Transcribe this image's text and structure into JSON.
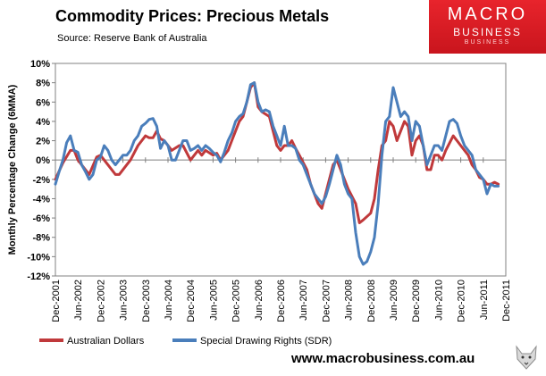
{
  "header": {
    "title": "Commodity Prices: Precious Metals",
    "source": "Source: Reserve Bank of Australia"
  },
  "logo": {
    "line1": "MACRO",
    "line2": "BUSINESS",
    "line3": "BUSINESS"
  },
  "footer": {
    "website": "www.macrobusiness.com.au"
  },
  "colors": {
    "aud": "#c0393b",
    "sdr": "#4a7ebb",
    "brand": "#d9262c"
  },
  "chart_data": {
    "type": "line",
    "title": "Commodity Prices: Precious Metals",
    "xlabel": "",
    "ylabel": "Monthly Percentage Change (6MMA)",
    "ylim": [
      -12,
      10
    ],
    "grid": false,
    "legend_position": "bottom",
    "yticks": [
      10,
      8,
      6,
      4,
      2,
      0,
      -2,
      -4,
      -6,
      -8,
      -10,
      -12
    ],
    "ytick_labels": [
      "10%",
      "8%",
      "6%",
      "4%",
      "2%",
      "0%",
      "-2%",
      "-4%",
      "-6%",
      "-8%",
      "-10%",
      "-12%"
    ],
    "xtick_months": [
      0,
      6,
      12,
      18,
      24,
      30,
      36,
      42,
      48,
      54,
      60,
      66,
      72,
      78,
      84,
      90,
      96,
      102,
      108,
      114,
      120
    ],
    "xtick_labels": [
      "Dec-2001",
      "Jun-2002",
      "Dec-2002",
      "Jun-2003",
      "Dec-2003",
      "Jun-2004",
      "Dec-2004",
      "Jun-2005",
      "Dec-2005",
      "Jun-2006",
      "Dec-2006",
      "Jun-2007",
      "Dec-2007",
      "Jun-2008",
      "Dec-2008",
      "Jun-2009",
      "Dec-2009",
      "Jun-2010",
      "Dec-2010",
      "Jun-2011",
      "Dec-2011"
    ],
    "series": [
      {
        "name": "Australian Dollars",
        "points": [
          [
            0,
            -2.0
          ],
          [
            2,
            -0.3
          ],
          [
            4,
            1.0
          ],
          [
            5,
            1.0
          ],
          [
            6,
            0.0
          ],
          [
            8,
            -1.0
          ],
          [
            9,
            -1.5
          ],
          [
            11,
            0.3
          ],
          [
            12,
            0.5
          ],
          [
            14,
            -0.5
          ],
          [
            16,
            -1.5
          ],
          [
            17,
            -1.5
          ],
          [
            19,
            -0.5
          ],
          [
            20,
            0.0
          ],
          [
            22,
            1.5
          ],
          [
            24,
            2.5
          ],
          [
            25,
            2.3
          ],
          [
            26,
            2.3
          ],
          [
            27,
            3.0
          ],
          [
            28,
            2.2
          ],
          [
            29,
            2.0
          ],
          [
            31,
            1.0
          ],
          [
            33,
            1.5
          ],
          [
            34,
            1.5
          ],
          [
            36,
            0.0
          ],
          [
            37,
            0.5
          ],
          [
            38,
            1.0
          ],
          [
            39,
            0.5
          ],
          [
            40,
            1.0
          ],
          [
            42,
            0.5
          ],
          [
            43,
            0.7
          ],
          [
            44,
            0.0
          ],
          [
            46,
            1.0
          ],
          [
            47,
            2.0
          ],
          [
            49,
            4.0
          ],
          [
            50,
            4.5
          ],
          [
            52,
            7.5
          ],
          [
            53,
            8.0
          ],
          [
            54,
            5.5
          ],
          [
            55,
            5.0
          ],
          [
            57,
            4.5
          ],
          [
            58,
            3.0
          ],
          [
            59,
            1.5
          ],
          [
            60,
            1.0
          ],
          [
            61,
            1.5
          ],
          [
            62,
            1.5
          ],
          [
            63,
            2.0
          ],
          [
            64,
            1.2
          ],
          [
            65,
            0.5
          ],
          [
            67,
            -1.0
          ],
          [
            68,
            -2.5
          ],
          [
            70,
            -4.5
          ],
          [
            71,
            -5.0
          ],
          [
            72,
            -3.5
          ],
          [
            73,
            -2.0
          ],
          [
            74,
            -0.5
          ],
          [
            75,
            0.0
          ],
          [
            76,
            -1.0
          ],
          [
            78,
            -3.0
          ],
          [
            80,
            -4.5
          ],
          [
            81,
            -6.5
          ],
          [
            82,
            -6.2
          ],
          [
            84,
            -5.5
          ],
          [
            85,
            -4.0
          ],
          [
            86,
            -1.0
          ],
          [
            87,
            1.5
          ],
          [
            88,
            2.0
          ],
          [
            89,
            4.0
          ],
          [
            90,
            3.5
          ],
          [
            91,
            2.0
          ],
          [
            92,
            3.0
          ],
          [
            93,
            4.0
          ],
          [
            94,
            3.5
          ],
          [
            95,
            0.5
          ],
          [
            96,
            2.0
          ],
          [
            97,
            2.5
          ],
          [
            98,
            1.5
          ],
          [
            99,
            -1.0
          ],
          [
            100,
            -1.0
          ],
          [
            101,
            0.5
          ],
          [
            102,
            0.5
          ],
          [
            103,
            0.0
          ],
          [
            104,
            1.0
          ],
          [
            106,
            2.5
          ],
          [
            107,
            2.0
          ],
          [
            108,
            1.5
          ],
          [
            110,
            0.5
          ],
          [
            111,
            -0.5
          ],
          [
            112,
            -1.0
          ],
          [
            113,
            -1.8
          ],
          [
            114,
            -2.0
          ],
          [
            115,
            -2.5
          ],
          [
            116,
            -2.5
          ],
          [
            117,
            -2.3
          ],
          [
            118,
            -2.5
          ]
        ]
      },
      {
        "name": "Special Drawing Rights (SDR)",
        "points": [
          [
            0,
            -2.5
          ],
          [
            1,
            -1.2
          ],
          [
            2,
            0.0
          ],
          [
            3,
            1.8
          ],
          [
            4,
            2.5
          ],
          [
            5,
            1.0
          ],
          [
            6,
            0.8
          ],
          [
            7,
            -0.5
          ],
          [
            8,
            -1.2
          ],
          [
            9,
            -2.0
          ],
          [
            10,
            -1.5
          ],
          [
            11,
            0.0
          ],
          [
            12,
            0.3
          ],
          [
            13,
            1.5
          ],
          [
            14,
            1.0
          ],
          [
            15,
            0.0
          ],
          [
            16,
            -0.5
          ],
          [
            17,
            0.0
          ],
          [
            18,
            0.5
          ],
          [
            19,
            0.5
          ],
          [
            20,
            1.0
          ],
          [
            21,
            2.0
          ],
          [
            22,
            2.5
          ],
          [
            23,
            3.5
          ],
          [
            24,
            3.8
          ],
          [
            25,
            4.2
          ],
          [
            26,
            4.3
          ],
          [
            27,
            3.5
          ],
          [
            28,
            1.2
          ],
          [
            29,
            2.0
          ],
          [
            30,
            1.5
          ],
          [
            31,
            0.0
          ],
          [
            32,
            0.0
          ],
          [
            33,
            1.0
          ],
          [
            34,
            2.0
          ],
          [
            35,
            2.0
          ],
          [
            36,
            1.0
          ],
          [
            37,
            1.2
          ],
          [
            38,
            1.5
          ],
          [
            39,
            1.0
          ],
          [
            40,
            1.5
          ],
          [
            41,
            1.2
          ],
          [
            42,
            0.8
          ],
          [
            43,
            0.5
          ],
          [
            44,
            -0.2
          ],
          [
            45,
            0.8
          ],
          [
            46,
            2.0
          ],
          [
            47,
            2.8
          ],
          [
            48,
            4.0
          ],
          [
            49,
            4.5
          ],
          [
            50,
            4.8
          ],
          [
            51,
            6.0
          ],
          [
            52,
            7.8
          ],
          [
            53,
            8.0
          ],
          [
            54,
            6.0
          ],
          [
            55,
            5.0
          ],
          [
            56,
            5.2
          ],
          [
            57,
            5.0
          ],
          [
            58,
            3.5
          ],
          [
            59,
            2.5
          ],
          [
            60,
            1.5
          ],
          [
            61,
            3.5
          ],
          [
            62,
            1.5
          ],
          [
            63,
            1.5
          ],
          [
            64,
            1.2
          ],
          [
            65,
            0.0
          ],
          [
            66,
            -0.5
          ],
          [
            67,
            -1.5
          ],
          [
            68,
            -2.5
          ],
          [
            69,
            -3.5
          ],
          [
            70,
            -4.0
          ],
          [
            71,
            -4.5
          ],
          [
            72,
            -3.8
          ],
          [
            73,
            -2.5
          ],
          [
            74,
            -1.0
          ],
          [
            75,
            0.5
          ],
          [
            76,
            -0.5
          ],
          [
            77,
            -2.5
          ],
          [
            78,
            -3.5
          ],
          [
            79,
            -4.0
          ],
          [
            80,
            -7.5
          ],
          [
            81,
            -10.0
          ],
          [
            82,
            -10.8
          ],
          [
            83,
            -10.5
          ],
          [
            84,
            -9.5
          ],
          [
            85,
            -8.0
          ],
          [
            86,
            -4.5
          ],
          [
            87,
            0.5
          ],
          [
            88,
            4.0
          ],
          [
            89,
            4.5
          ],
          [
            90,
            7.5
          ],
          [
            91,
            6.0
          ],
          [
            92,
            4.5
          ],
          [
            93,
            5.0
          ],
          [
            94,
            4.5
          ],
          [
            95,
            2.0
          ],
          [
            96,
            4.0
          ],
          [
            97,
            3.5
          ],
          [
            98,
            1.5
          ],
          [
            99,
            -0.5
          ],
          [
            100,
            0.5
          ],
          [
            101,
            1.5
          ],
          [
            102,
            1.5
          ],
          [
            103,
            1.0
          ],
          [
            104,
            2.5
          ],
          [
            105,
            4.0
          ],
          [
            106,
            4.2
          ],
          [
            107,
            3.8
          ],
          [
            108,
            2.5
          ],
          [
            109,
            1.5
          ],
          [
            110,
            1.0
          ],
          [
            111,
            0.5
          ],
          [
            112,
            -1.0
          ],
          [
            113,
            -1.5
          ],
          [
            114,
            -2.0
          ],
          [
            115,
            -3.5
          ],
          [
            116,
            -2.5
          ],
          [
            117,
            -2.7
          ],
          [
            118,
            -2.7
          ]
        ]
      }
    ]
  }
}
